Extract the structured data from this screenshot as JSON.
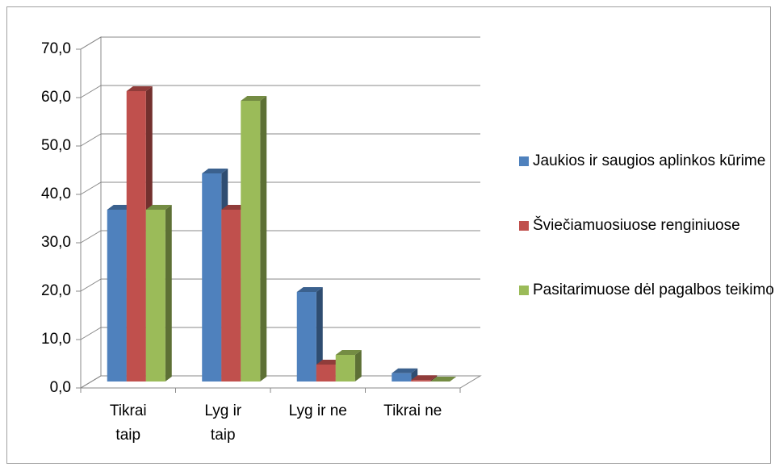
{
  "chart_data": {
    "type": "bar3d",
    "categories": [
      "Tikrai taip",
      "Lyg ir taip",
      "Lyg ir ne",
      "Tikrai ne"
    ],
    "series": [
      {
        "name": "Jaukios ir saugios aplinkos kūrime",
        "color": "#4f81bd",
        "values": [
          35.5,
          43,
          18.5,
          1.7
        ]
      },
      {
        "name": "Šviečiamuosiuose renginiuose",
        "color": "#c0504d",
        "values": [
          60,
          35.5,
          3.5,
          0.3
        ]
      },
      {
        "name": "Pasitarimuose dėl pagalbos teikimo",
        "color": "#9bbb59",
        "values": [
          35.5,
          58,
          5.5,
          0
        ]
      }
    ],
    "ylim": [
      0,
      70
    ],
    "yticks": [
      {
        "value": 0,
        "label": "0,0"
      },
      {
        "value": 10,
        "label": "10,0"
      },
      {
        "value": 20,
        "label": "20,0"
      },
      {
        "value": 30,
        "label": "30,0"
      },
      {
        "value": 40,
        "label": "40,0"
      },
      {
        "value": 50,
        "label": "50,0"
      },
      {
        "value": 60,
        "label": "60,0"
      },
      {
        "value": 70,
        "label": "70,0"
      }
    ],
    "grid": true,
    "legend": "right"
  }
}
